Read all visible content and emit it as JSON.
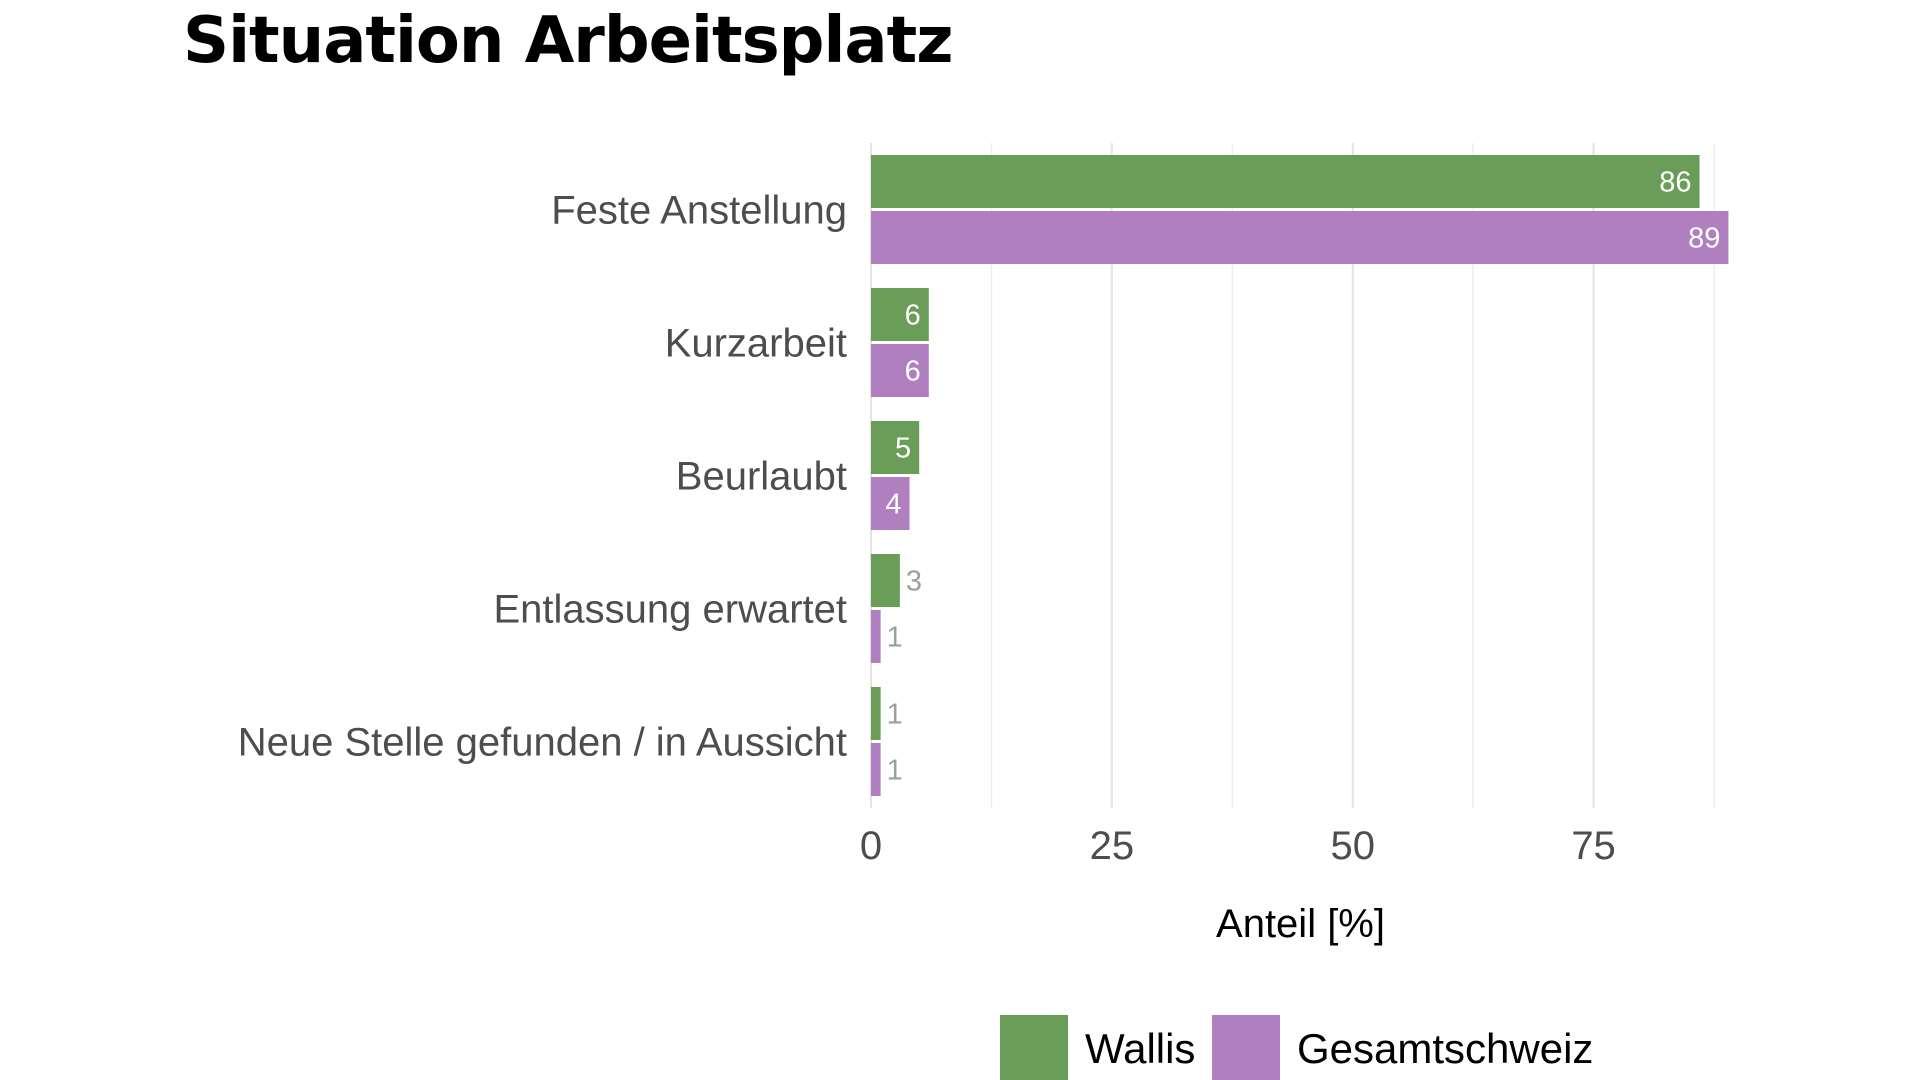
{
  "chart_data": {
    "type": "bar",
    "orientation": "horizontal",
    "title": "Situation Arbeitsplatz",
    "categories": [
      "Feste Anstellung",
      "Kurzarbeit",
      "Beurlaubt",
      "Entlassung erwartet",
      "Neue Stelle gefunden / in Aussicht"
    ],
    "series": [
      {
        "name": "Wallis",
        "color": "#6a9e58",
        "values": [
          86,
          6,
          5,
          3,
          1
        ]
      },
      {
        "name": "Gesamtschweiz",
        "color": "#b07fbf",
        "values": [
          89,
          6,
          4,
          1,
          1
        ]
      }
    ],
    "xlabel": "Anteil [%]",
    "ylabel": "",
    "xlim": [
      0,
      90
    ],
    "xticks": [
      0,
      25,
      50,
      75
    ],
    "xtick_labels": [
      "0",
      "25",
      "50",
      "75"
    ],
    "grid": true,
    "legend_position": "bottom"
  }
}
